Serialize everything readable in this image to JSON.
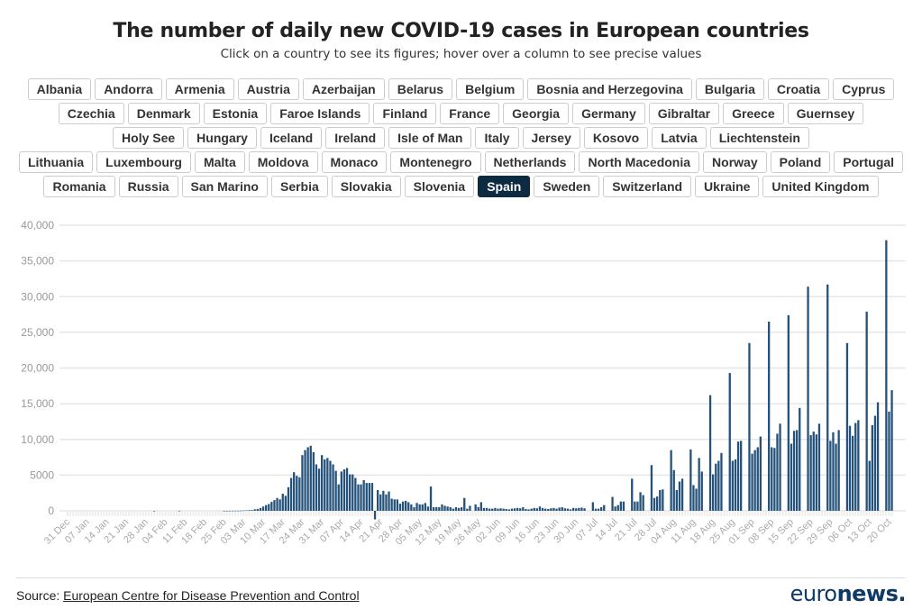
{
  "title": "The number of daily new COVID-19 cases in European countries",
  "subtitle": "Click on a country to see its figures; hover over a column to see precise values",
  "countries": [
    "Albania",
    "Andorra",
    "Armenia",
    "Austria",
    "Azerbaijan",
    "Belarus",
    "Belgium",
    "Bosnia and Herzegovina",
    "Bulgaria",
    "Croatia",
    "Cyprus",
    "Czechia",
    "Denmark",
    "Estonia",
    "Faroe Islands",
    "Finland",
    "France",
    "Georgia",
    "Germany",
    "Gibraltar",
    "Greece",
    "Guernsey",
    "Holy See",
    "Hungary",
    "Iceland",
    "Ireland",
    "Isle of Man",
    "Italy",
    "Jersey",
    "Kosovo",
    "Latvia",
    "Liechtenstein",
    "Lithuania",
    "Luxembourg",
    "Malta",
    "Moldova",
    "Monaco",
    "Montenegro",
    "Netherlands",
    "North Macedonia",
    "Norway",
    "Poland",
    "Portugal",
    "Romania",
    "Russia",
    "San Marino",
    "Serbia",
    "Slovakia",
    "Slovenia",
    "Spain",
    "Sweden",
    "Switzerland",
    "Ukraine",
    "United Kingdom"
  ],
  "selected_country": "Spain",
  "colors": {
    "bar": "#24527a",
    "selected_button": "#0d2b40",
    "grid": "#e6e6e6"
  },
  "chart_data": {
    "type": "bar",
    "series_country": "Spain",
    "x_start_date": "2019-12-31",
    "x_end_date": "2020-10-21",
    "x_tick_labels": [
      "31 Dec",
      "07 Jan",
      "14 Jan",
      "21 Jan",
      "28 Jan",
      "04 Feb",
      "11 Feb",
      "18 Feb",
      "25 Feb",
      "03 Mar",
      "10 Mar",
      "17 Mar",
      "24 Mar",
      "31 Mar",
      "07 Apr",
      "14 Apr",
      "21 Apr",
      "28 Apr",
      "05 May",
      "12 May",
      "19 May",
      "26 May",
      "02 Jun",
      "09 Jun",
      "16 Jun",
      "23 Jun",
      "30 Jun",
      "07 Jul",
      "14 Jul",
      "21 Jul",
      "28 Jul",
      "04 Aug",
      "11 Aug",
      "18 Aug",
      "25 Aug",
      "01 Sep",
      "08 Sep",
      "15 Sep",
      "22 Sep",
      "29 Sep",
      "06 Oct",
      "13 Oct",
      "20 Oct"
    ],
    "y_tick_labels": [
      "0",
      "5000",
      "10,000",
      "15,000",
      "20,000",
      "25,000",
      "30,000",
      "35,000",
      "40,000"
    ],
    "ylim": [
      0,
      40000
    ],
    "grid": true,
    "values": [
      0,
      0,
      0,
      0,
      0,
      0,
      0,
      0,
      0,
      0,
      0,
      0,
      0,
      0,
      0,
      0,
      0,
      0,
      0,
      0,
      0,
      0,
      0,
      0,
      0,
      0,
      0,
      0,
      0,
      0,
      0,
      1,
      0,
      0,
      0,
      0,
      0,
      0,
      0,
      0,
      1,
      0,
      0,
      0,
      0,
      0,
      0,
      0,
      0,
      0,
      0,
      0,
      0,
      0,
      0,
      0,
      2,
      3,
      4,
      12,
      17,
      13,
      30,
      50,
      60,
      90,
      100,
      210,
      260,
      400,
      600,
      800,
      950,
      1250,
      1500,
      1800,
      1600,
      2400,
      2100,
      3300,
      4600,
      5400,
      4900,
      4700,
      7800,
      8500,
      8900,
      9100,
      8200,
      6500,
      5900,
      7800,
      7200,
      7400,
      7000,
      6500,
      5600,
      3700,
      5500,
      5800,
      6000,
      5100,
      5100,
      4600,
      3700,
      3700,
      4300,
      3900,
      3900,
      3900,
      -1200,
      2900,
      2300,
      2800,
      2300,
      2700,
      1700,
      1600,
      1600,
      1000,
      1300,
      1400,
      1200,
      900,
      500,
      1100,
      900,
      900,
      1100,
      600,
      3400,
      500,
      500,
      500,
      900,
      700,
      600,
      500,
      300,
      500,
      400,
      500,
      1800,
      300,
      700,
      0,
      900,
      500,
      1200,
      400,
      400,
      300,
      300,
      400,
      300,
      350,
      300,
      250,
      200,
      300,
      350,
      400,
      350,
      500,
      250,
      200,
      300,
      400,
      350,
      600,
      400,
      300,
      250,
      350,
      400,
      300,
      450,
      500,
      350,
      300,
      200,
      400,
      350,
      400,
      450,
      350,
      0,
      0,
      1200,
      300,
      300,
      500,
      800,
      0,
      0,
      1950,
      600,
      800,
      1300,
      1300,
      0,
      0,
      4500,
      1300,
      1300,
      2600,
      2200,
      0,
      0,
      6400,
      1800,
      2000,
      2900,
      3000,
      0,
      0,
      8500,
      5700,
      2900,
      4100,
      4500,
      0,
      0,
      8600,
      3600,
      3100,
      7400,
      5500,
      0,
      0,
      16200,
      5100,
      6600,
      7000,
      8100,
      0,
      0,
      19300,
      7000,
      7200,
      9700,
      9800,
      0,
      0,
      23500,
      8000,
      8500,
      8900,
      10400,
      0,
      0,
      26500,
      8900,
      8800,
      10800,
      12200,
      0,
      0,
      27400,
      9400,
      11200,
      11300,
      14400,
      0,
      0,
      31400,
      10600,
      11100,
      10700,
      12200,
      0,
      0,
      31700,
      9800,
      11000,
      9400,
      11300,
      0,
      0,
      23500,
      11900,
      10500,
      12300,
      12700,
      0,
      0,
      27900,
      7000,
      12000,
      13300,
      15200,
      0,
      0,
      37900,
      13900,
      16900
    ]
  },
  "footer": {
    "source_prefix": "Source: ",
    "source_link": "European Centre for Disease Prevention and Control",
    "logo_light": "euro",
    "logo_bold": "news."
  }
}
